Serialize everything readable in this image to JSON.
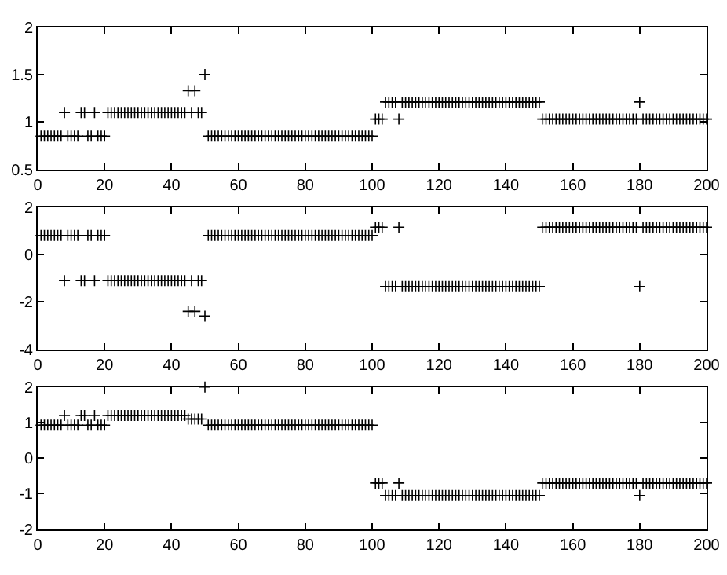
{
  "chart_data": [
    {
      "type": "scatter",
      "marker": "cross",
      "x": [
        1,
        2,
        3,
        4,
        5,
        6,
        7,
        8,
        9,
        10,
        11,
        12,
        13,
        14,
        15,
        16,
        17,
        18,
        19,
        20,
        21,
        22,
        23,
        24,
        25,
        26,
        27,
        28,
        29,
        30,
        31,
        32,
        33,
        34,
        35,
        36,
        37,
        38,
        39,
        40,
        41,
        42,
        43,
        44,
        45,
        46,
        47,
        48,
        49,
        50,
        51,
        52,
        53,
        54,
        55,
        56,
        57,
        58,
        59,
        60,
        61,
        62,
        63,
        64,
        65,
        66,
        67,
        68,
        69,
        70,
        71,
        72,
        73,
        74,
        75,
        76,
        77,
        78,
        79,
        80,
        81,
        82,
        83,
        84,
        85,
        86,
        87,
        88,
        89,
        90,
        91,
        92,
        93,
        94,
        95,
        96,
        97,
        98,
        99,
        100,
        101,
        102,
        103,
        104,
        105,
        106,
        107,
        108,
        109,
        110,
        111,
        112,
        113,
        114,
        115,
        116,
        117,
        118,
        119,
        120,
        121,
        122,
        123,
        124,
        125,
        126,
        127,
        128,
        129,
        130,
        131,
        132,
        133,
        134,
        135,
        136,
        137,
        138,
        139,
        140,
        141,
        142,
        143,
        144,
        145,
        146,
        147,
        148,
        149,
        150,
        151,
        152,
        153,
        154,
        155,
        156,
        157,
        158,
        159,
        160,
        161,
        162,
        163,
        164,
        165,
        166,
        167,
        168,
        169,
        170,
        171,
        172,
        173,
        174,
        175,
        176,
        177,
        178,
        179,
        180,
        181,
        182,
        183,
        184,
        185,
        186,
        187,
        188,
        189,
        190,
        191,
        192,
        193,
        194,
        195,
        196,
        197,
        198,
        199,
        200
      ],
      "series": [
        {
          "color": "#000000",
          "values": [
            0.85,
            0.85,
            0.85,
            0.85,
            0.85,
            0.85,
            0.85,
            1.1,
            0.85,
            0.85,
            0.85,
            0.85,
            1.1,
            1.1,
            0.85,
            0.85,
            1.1,
            0.85,
            0.85,
            0.85,
            1.1,
            1.1,
            1.1,
            1.1,
            1.1,
            1.1,
            1.1,
            1.1,
            1.1,
            1.1,
            1.1,
            1.1,
            1.1,
            1.1,
            1.1,
            1.1,
            1.1,
            1.1,
            1.1,
            1.1,
            1.1,
            1.1,
            1.1,
            1.1,
            1.33,
            1.1,
            1.33,
            1.1,
            1.1,
            1.5,
            0.85,
            0.85,
            0.85,
            0.85,
            0.85,
            0.85,
            0.85,
            0.85,
            0.85,
            0.85,
            0.85,
            0.85,
            0.85,
            0.85,
            0.85,
            0.85,
            0.85,
            0.85,
            0.85,
            0.85,
            0.85,
            0.85,
            0.85,
            0.85,
            0.85,
            0.85,
            0.85,
            0.85,
            0.85,
            0.85,
            0.85,
            0.85,
            0.85,
            0.85,
            0.85,
            0.85,
            0.85,
            0.85,
            0.85,
            0.85,
            0.85,
            0.85,
            0.85,
            0.85,
            0.85,
            0.85,
            0.85,
            0.85,
            0.85,
            0.85,
            1.03,
            1.03,
            1.03,
            1.21,
            1.21,
            1.21,
            1.21,
            1.03,
            1.21,
            1.21,
            1.21,
            1.21,
            1.21,
            1.21,
            1.21,
            1.21,
            1.21,
            1.21,
            1.21,
            1.21,
            1.21,
            1.21,
            1.21,
            1.21,
            1.21,
            1.21,
            1.21,
            1.21,
            1.21,
            1.21,
            1.21,
            1.21,
            1.21,
            1.21,
            1.21,
            1.21,
            1.21,
            1.21,
            1.21,
            1.21,
            1.21,
            1.21,
            1.21,
            1.21,
            1.21,
            1.21,
            1.21,
            1.21,
            1.21,
            1.21,
            1.03,
            1.03,
            1.03,
            1.03,
            1.03,
            1.03,
            1.03,
            1.03,
            1.03,
            1.03,
            1.03,
            1.03,
            1.03,
            1.03,
            1.03,
            1.03,
            1.03,
            1.03,
            1.03,
            1.03,
            1.03,
            1.03,
            1.03,
            1.03,
            1.03,
            1.03,
            1.03,
            1.03,
            1.03,
            1.21,
            1.03,
            1.03,
            1.03,
            1.03,
            1.03,
            1.03,
            1.03,
            1.03,
            1.03,
            1.03,
            1.03,
            1.03,
            1.03,
            1.03,
            1.03,
            1.03,
            1.03,
            1.03,
            1.03,
            1.03
          ]
        }
      ],
      "xlim": [
        0,
        200
      ],
      "xticks": [
        0,
        20,
        40,
        60,
        80,
        100,
        120,
        140,
        160,
        180,
        200
      ],
      "ylim": [
        0.5,
        2
      ],
      "yticks": [
        0.5,
        1,
        1.5,
        2
      ]
    },
    {
      "type": "scatter",
      "marker": "cross",
      "x": [
        1,
        2,
        3,
        4,
        5,
        6,
        7,
        8,
        9,
        10,
        11,
        12,
        13,
        14,
        15,
        16,
        17,
        18,
        19,
        20,
        21,
        22,
        23,
        24,
        25,
        26,
        27,
        28,
        29,
        30,
        31,
        32,
        33,
        34,
        35,
        36,
        37,
        38,
        39,
        40,
        41,
        42,
        43,
        44,
        45,
        46,
        47,
        48,
        49,
        50,
        51,
        52,
        53,
        54,
        55,
        56,
        57,
        58,
        59,
        60,
        61,
        62,
        63,
        64,
        65,
        66,
        67,
        68,
        69,
        70,
        71,
        72,
        73,
        74,
        75,
        76,
        77,
        78,
        79,
        80,
        81,
        82,
        83,
        84,
        85,
        86,
        87,
        88,
        89,
        90,
        91,
        92,
        93,
        94,
        95,
        96,
        97,
        98,
        99,
        100,
        101,
        102,
        103,
        104,
        105,
        106,
        107,
        108,
        109,
        110,
        111,
        112,
        113,
        114,
        115,
        116,
        117,
        118,
        119,
        120,
        121,
        122,
        123,
        124,
        125,
        126,
        127,
        128,
        129,
        130,
        131,
        132,
        133,
        134,
        135,
        136,
        137,
        138,
        139,
        140,
        141,
        142,
        143,
        144,
        145,
        146,
        147,
        148,
        149,
        150,
        151,
        152,
        153,
        154,
        155,
        156,
        157,
        158,
        159,
        160,
        161,
        162,
        163,
        164,
        165,
        166,
        167,
        168,
        169,
        170,
        171,
        172,
        173,
        174,
        175,
        176,
        177,
        178,
        179,
        180,
        181,
        182,
        183,
        184,
        185,
        186,
        187,
        188,
        189,
        190,
        191,
        192,
        193,
        194,
        195,
        196,
        197,
        198,
        199,
        200
      ],
      "series": [
        {
          "color": "#000000",
          "values": [
            0.8,
            0.8,
            0.8,
            0.8,
            0.8,
            0.8,
            0.8,
            -1.1,
            0.8,
            0.8,
            0.8,
            0.8,
            -1.1,
            -1.1,
            0.8,
            0.8,
            -1.1,
            0.8,
            0.8,
            0.8,
            -1.1,
            -1.1,
            -1.1,
            -1.1,
            -1.1,
            -1.1,
            -1.1,
            -1.1,
            -1.1,
            -1.1,
            -1.1,
            -1.1,
            -1.1,
            -1.1,
            -1.1,
            -1.1,
            -1.1,
            -1.1,
            -1.1,
            -1.1,
            -1.1,
            -1.1,
            -1.1,
            -1.1,
            -2.4,
            -1.1,
            -2.4,
            -1.1,
            -1.1,
            -2.6,
            0.8,
            0.8,
            0.8,
            0.8,
            0.8,
            0.8,
            0.8,
            0.8,
            0.8,
            0.8,
            0.8,
            0.8,
            0.8,
            0.8,
            0.8,
            0.8,
            0.8,
            0.8,
            0.8,
            0.8,
            0.8,
            0.8,
            0.8,
            0.8,
            0.8,
            0.8,
            0.8,
            0.8,
            0.8,
            0.8,
            0.8,
            0.8,
            0.8,
            0.8,
            0.8,
            0.8,
            0.8,
            0.8,
            0.8,
            0.8,
            0.8,
            0.8,
            0.8,
            0.8,
            0.8,
            0.8,
            0.8,
            0.8,
            0.8,
            0.8,
            1.15,
            1.15,
            1.15,
            -1.35,
            -1.35,
            -1.35,
            -1.35,
            1.15,
            -1.35,
            -1.35,
            -1.35,
            -1.35,
            -1.35,
            -1.35,
            -1.35,
            -1.35,
            -1.35,
            -1.35,
            -1.35,
            -1.35,
            -1.35,
            -1.35,
            -1.35,
            -1.35,
            -1.35,
            -1.35,
            -1.35,
            -1.35,
            -1.35,
            -1.35,
            -1.35,
            -1.35,
            -1.35,
            -1.35,
            -1.35,
            -1.35,
            -1.35,
            -1.35,
            -1.35,
            -1.35,
            -1.35,
            -1.35,
            -1.35,
            -1.35,
            -1.35,
            -1.35,
            -1.35,
            -1.35,
            -1.35,
            -1.35,
            1.15,
            1.15,
            1.15,
            1.15,
            1.15,
            1.15,
            1.15,
            1.15,
            1.15,
            1.15,
            1.15,
            1.15,
            1.15,
            1.15,
            1.15,
            1.15,
            1.15,
            1.15,
            1.15,
            1.15,
            1.15,
            1.15,
            1.15,
            1.15,
            1.15,
            1.15,
            1.15,
            1.15,
            1.15,
            -1.35,
            1.15,
            1.15,
            1.15,
            1.15,
            1.15,
            1.15,
            1.15,
            1.15,
            1.15,
            1.15,
            1.15,
            1.15,
            1.15,
            1.15,
            1.15,
            1.15,
            1.15,
            1.15,
            1.15,
            1.15
          ]
        }
      ],
      "xlim": [
        0,
        200
      ],
      "xticks": [
        0,
        20,
        40,
        60,
        80,
        100,
        120,
        140,
        160,
        180,
        200
      ],
      "ylim": [
        -4,
        2
      ],
      "yticks": [
        -4,
        -2,
        0,
        2
      ]
    },
    {
      "type": "scatter",
      "marker": "cross",
      "x": [
        1,
        2,
        3,
        4,
        5,
        6,
        7,
        8,
        9,
        10,
        11,
        12,
        13,
        14,
        15,
        16,
        17,
        18,
        19,
        20,
        21,
        22,
        23,
        24,
        25,
        26,
        27,
        28,
        29,
        30,
        31,
        32,
        33,
        34,
        35,
        36,
        37,
        38,
        39,
        40,
        41,
        42,
        43,
        44,
        45,
        46,
        47,
        48,
        49,
        50,
        51,
        52,
        53,
        54,
        55,
        56,
        57,
        58,
        59,
        60,
        61,
        62,
        63,
        64,
        65,
        66,
        67,
        68,
        69,
        70,
        71,
        72,
        73,
        74,
        75,
        76,
        77,
        78,
        79,
        80,
        81,
        82,
        83,
        84,
        85,
        86,
        87,
        88,
        89,
        90,
        91,
        92,
        93,
        94,
        95,
        96,
        97,
        98,
        99,
        100,
        101,
        102,
        103,
        104,
        105,
        106,
        107,
        108,
        109,
        110,
        111,
        112,
        113,
        114,
        115,
        116,
        117,
        118,
        119,
        120,
        121,
        122,
        123,
        124,
        125,
        126,
        127,
        128,
        129,
        130,
        131,
        132,
        133,
        134,
        135,
        136,
        137,
        138,
        139,
        140,
        141,
        142,
        143,
        144,
        145,
        146,
        147,
        148,
        149,
        150,
        151,
        152,
        153,
        154,
        155,
        156,
        157,
        158,
        159,
        160,
        161,
        162,
        163,
        164,
        165,
        166,
        167,
        168,
        169,
        170,
        171,
        172,
        173,
        174,
        175,
        176,
        177,
        178,
        179,
        180,
        181,
        182,
        183,
        184,
        185,
        186,
        187,
        188,
        189,
        190,
        191,
        192,
        193,
        194,
        195,
        196,
        197,
        198,
        199,
        200
      ],
      "series": [
        {
          "color": "#000000",
          "values": [
            0.93,
            0.93,
            0.93,
            0.93,
            0.93,
            0.93,
            0.93,
            1.2,
            0.93,
            0.93,
            0.93,
            0.93,
            1.2,
            1.2,
            0.93,
            0.93,
            1.2,
            0.93,
            0.93,
            0.93,
            1.2,
            1.2,
            1.2,
            1.2,
            1.2,
            1.2,
            1.2,
            1.2,
            1.2,
            1.2,
            1.2,
            1.2,
            1.2,
            1.2,
            1.2,
            1.2,
            1.2,
            1.2,
            1.2,
            1.2,
            1.2,
            1.2,
            1.2,
            1.2,
            1.1,
            1.1,
            1.1,
            1.1,
            1.1,
            2.0,
            0.93,
            0.93,
            0.93,
            0.93,
            0.93,
            0.93,
            0.93,
            0.93,
            0.93,
            0.93,
            0.93,
            0.93,
            0.93,
            0.93,
            0.93,
            0.93,
            0.93,
            0.93,
            0.93,
            0.93,
            0.93,
            0.93,
            0.93,
            0.93,
            0.93,
            0.93,
            0.93,
            0.93,
            0.93,
            0.93,
            0.93,
            0.93,
            0.93,
            0.93,
            0.93,
            0.93,
            0.93,
            0.93,
            0.93,
            0.93,
            0.93,
            0.93,
            0.93,
            0.93,
            0.93,
            0.93,
            0.93,
            0.93,
            0.93,
            0.93,
            -0.7,
            -0.7,
            -0.7,
            -1.05,
            -1.05,
            -1.05,
            -1.05,
            -0.7,
            -1.05,
            -1.05,
            -1.05,
            -1.05,
            -1.05,
            -1.05,
            -1.05,
            -1.05,
            -1.05,
            -1.05,
            -1.05,
            -1.05,
            -1.05,
            -1.05,
            -1.05,
            -1.05,
            -1.05,
            -1.05,
            -1.05,
            -1.05,
            -1.05,
            -1.05,
            -1.05,
            -1.05,
            -1.05,
            -1.05,
            -1.05,
            -1.05,
            -1.05,
            -1.05,
            -1.05,
            -1.05,
            -1.05,
            -1.05,
            -1.05,
            -1.05,
            -1.05,
            -1.05,
            -1.05,
            -1.05,
            -1.05,
            -1.05,
            -0.7,
            -0.7,
            -0.7,
            -0.7,
            -0.7,
            -0.7,
            -0.7,
            -0.7,
            -0.7,
            -0.7,
            -0.7,
            -0.7,
            -0.7,
            -0.7,
            -0.7,
            -0.7,
            -0.7,
            -0.7,
            -0.7,
            -0.7,
            -0.7,
            -0.7,
            -0.7,
            -0.7,
            -0.7,
            -0.7,
            -0.7,
            -0.7,
            -0.7,
            -1.05,
            -0.7,
            -0.7,
            -0.7,
            -0.7,
            -0.7,
            -0.7,
            -0.7,
            -0.7,
            -0.7,
            -0.7,
            -0.7,
            -0.7,
            -0.7,
            -0.7,
            -0.7,
            -0.7,
            -0.7,
            -0.7,
            -0.7,
            -0.7
          ]
        }
      ],
      "xlim": [
        0,
        200
      ],
      "xticks": [
        0,
        20,
        40,
        60,
        80,
        100,
        120,
        140,
        160,
        180,
        200
      ],
      "ylim": [
        -2,
        2
      ],
      "yticks": [
        -2,
        -1,
        0,
        1,
        2
      ]
    }
  ]
}
